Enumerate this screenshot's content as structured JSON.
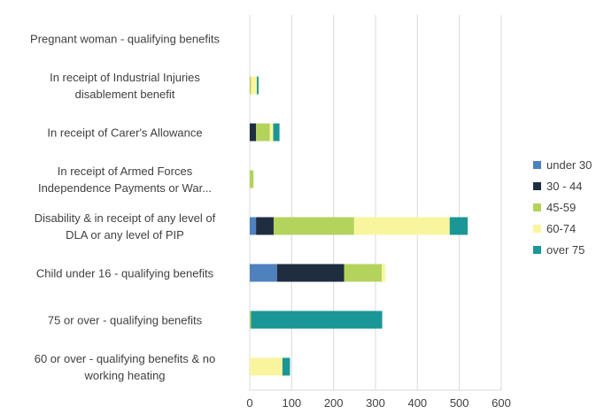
{
  "chart_data": {
    "type": "bar",
    "orientation": "horizontal",
    "stacked": true,
    "categories": [
      [
        "Pregnant woman -  qualifying benefits"
      ],
      [
        "In receipt of Industrial Injuries",
        "disablement benefit"
      ],
      [
        "In receipt of Carer's Allowance"
      ],
      [
        "In receipt of Armed Forces",
        "Independence Payments or War..."
      ],
      [
        "Disability & in receipt of any level of",
        "DLA or any level of PIP"
      ],
      [
        "Child under 16 - qualifying benefits"
      ],
      [
        "75 or over -  qualifying benefits"
      ],
      [
        "60 or over -  qualifying benefits & no",
        "working heating"
      ]
    ],
    "series": [
      {
        "name": "under 30",
        "color": "#4e81bd",
        "values": [
          0,
          0,
          0,
          0,
          15,
          65,
          0,
          0
        ]
      },
      {
        "name": "30 - 44",
        "color": "#1f2d40",
        "values": [
          0,
          0,
          15,
          0,
          42,
          160,
          0,
          0
        ]
      },
      {
        "name": "45-59",
        "color": "#b3d35c",
        "values": [
          0,
          3,
          33,
          9,
          192,
          90,
          3,
          0
        ]
      },
      {
        "name": "60-74",
        "color": "#f9f59e",
        "values": [
          0,
          14,
          8,
          0,
          228,
          8,
          0,
          78
        ]
      },
      {
        "name": "over 75",
        "color": "#1b9696",
        "values": [
          0,
          4,
          15,
          0,
          43,
          0,
          313,
          18
        ]
      }
    ],
    "xlim": [
      0,
      600
    ],
    "xticks": [
      "0",
      "100",
      "200",
      "300",
      "400",
      "500",
      "600"
    ],
    "grid": true,
    "legend_position": "right"
  }
}
